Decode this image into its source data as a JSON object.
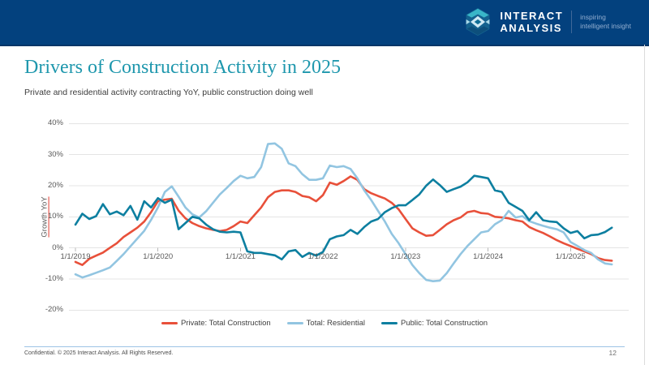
{
  "header": {
    "brand_line1": "INTERACT",
    "brand_line2": "ANALYSIS",
    "tagline_line1": "inspiring",
    "tagline_line2": "intelligent insight",
    "bar_color": "#03417e"
  },
  "slide": {
    "title": "Drivers of Construction Activity in 2025",
    "subtitle": "Private and residential activity contracting YoY, public construction doing well",
    "title_color": "#1e97ad"
  },
  "footer": {
    "confidential": "Confidential. © 2025 Interact Analysis. All Rights Reserved.",
    "page_number": "12"
  },
  "chart_data": {
    "type": "line",
    "title": "",
    "xlabel": "",
    "ylabel": "Growth YoY",
    "ylim": [
      -20,
      40
    ],
    "ytick_step": 10,
    "ytick_labels": [
      "40%",
      "30%",
      "20%",
      "10%",
      "0%",
      "-10%",
      "-20%"
    ],
    "grid": true,
    "legend_position": "bottom",
    "x_unit": "month",
    "x_start_label": "1/1/2019",
    "n_points": 79,
    "xtick_month_indices": [
      0,
      12,
      24,
      36,
      48,
      60,
      72
    ],
    "xtick_labels": [
      "1/1/2019",
      "1/1/2020",
      "1/1/2021",
      "1/1/2022",
      "1/1/2023",
      "1/1/2024",
      "1/1/2025"
    ],
    "series": [
      {
        "name": "Private: Total Construction",
        "color": "#e8503a",
        "values": [
          -4.5,
          -5.5,
          -3.5,
          -2.5,
          -1.5,
          0,
          1.5,
          3.5,
          5,
          6.5,
          8.5,
          11.5,
          15,
          15.5,
          15.8,
          12,
          9.5,
          8,
          7,
          6.3,
          5.8,
          5.4,
          5.8,
          7,
          8.5,
          8,
          10.5,
          13,
          16.3,
          18,
          18.5,
          18.5,
          18,
          16.7,
          16.3,
          15,
          17,
          21,
          20.3,
          21.5,
          23,
          21.9,
          18.9,
          17.6,
          16.7,
          15.9,
          14.5,
          12.4,
          9.3,
          6.3,
          5,
          3.9,
          4.1,
          5.8,
          7.6,
          8.9,
          9.8,
          11.5,
          11.9,
          11.2,
          11,
          10,
          9.8,
          9.5,
          8.9,
          8.5,
          6.7,
          5.7,
          4.8,
          3.7,
          2.5,
          1.5,
          0.6,
          -0.3,
          -1.1,
          -2,
          -3.3,
          -3.9,
          -4.1
        ]
      },
      {
        "name": "Total: Residential",
        "color": "#92c5e1",
        "values": [
          -8.5,
          -9.5,
          -8.8,
          -8,
          -7.2,
          -6.3,
          -4.2,
          -2,
          0.5,
          3,
          5.5,
          9,
          13,
          18,
          19.8,
          16.5,
          13,
          10.8,
          9.8,
          11.8,
          14.5,
          17.2,
          19.3,
          21.5,
          23.2,
          22.4,
          22.8,
          26,
          33.4,
          33.6,
          31.9,
          27.2,
          26.3,
          23.7,
          21.9,
          21.9,
          22.4,
          26.5,
          26,
          26.3,
          25.4,
          22.4,
          18.5,
          15.4,
          11.9,
          8.5,
          4.5,
          1.5,
          -2,
          -5.5,
          -8.1,
          -10.3,
          -10.7,
          -10.5,
          -8.1,
          -5,
          -2,
          0.6,
          2.8,
          5,
          5.4,
          7.6,
          8.9,
          11.9,
          9.8,
          10.2,
          8.6,
          7.8,
          7.1,
          6.5,
          6,
          5,
          1.9,
          0.6,
          -0.7,
          -1.6,
          -3.7,
          -5,
          -5.3
        ]
      },
      {
        "name": "Public: Total Construction",
        "color": "#0d7fa0",
        "values": [
          7.5,
          11,
          9.3,
          10.2,
          14.1,
          10.8,
          11.7,
          10.5,
          13.5,
          9.1,
          15,
          13,
          16,
          14.5,
          15.5,
          6,
          8,
          10,
          9.5,
          7.5,
          6,
          5.2,
          5,
          5.2,
          5,
          -1.1,
          -1.6,
          -1.6,
          -2,
          -2.4,
          -3.7,
          -1.1,
          -0.7,
          -2.9,
          -1.6,
          -2.5,
          -1.3,
          2.8,
          3.7,
          4.1,
          5.8,
          4.5,
          6.7,
          8.5,
          9.3,
          11.5,
          12.8,
          13.7,
          13.7,
          15.4,
          17.2,
          20,
          22,
          20.2,
          18,
          18.9,
          19.7,
          21.1,
          23.2,
          22.8,
          22.4,
          18.5,
          18,
          14.5,
          13.2,
          11.9,
          8.9,
          11.5,
          8.9,
          8.5,
          8.3,
          6.3,
          4.8,
          5.4,
          3.1,
          4.1,
          4.3,
          5.1,
          6.5
        ]
      }
    ]
  }
}
